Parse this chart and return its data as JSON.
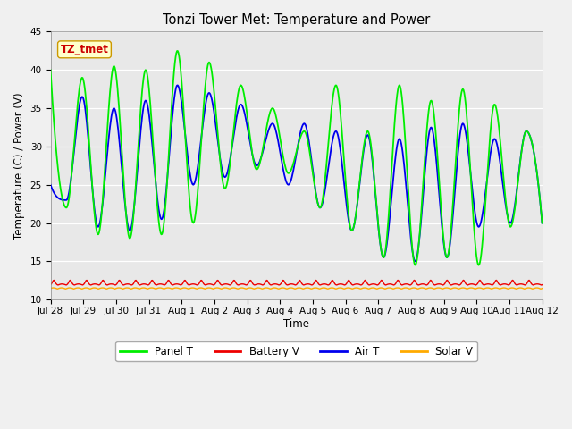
{
  "title": "Tonzi Tower Met: Temperature and Power",
  "xlabel": "Time",
  "ylabel": "Temperature (C) / Power (V)",
  "ylim": [
    10,
    45
  ],
  "yticks": [
    10,
    15,
    20,
    25,
    30,
    35,
    40,
    45
  ],
  "annotation_text": "TZ_tmet",
  "annotation_bg": "#ffffcc",
  "annotation_fg": "#cc0000",
  "plot_bg_color": "#e8e8e8",
  "fig_bg_color": "#f0f0f0",
  "panel_t_color": "#00ee00",
  "battery_v_color": "#ee0000",
  "air_t_color": "#0000ee",
  "solar_v_color": "#ffaa00",
  "x_tick_labels": [
    "Jul 28",
    "Jul 29",
    "Jul 30",
    "Jul 31",
    "Aug 1",
    "Aug 2",
    "Aug 3",
    "Aug 4",
    "Aug 5",
    "Aug 6",
    "Aug 7",
    "Aug 8",
    "Aug 9",
    "Aug 10",
    "Aug 11",
    "Aug 12"
  ],
  "num_points": 720,
  "panel_peaks": [
    40.0,
    22.0,
    39.0,
    18.5,
    40.5,
    18.0,
    40.0,
    18.5,
    42.5,
    20.0,
    41.0,
    24.5,
    38.0,
    27.0,
    35.0,
    26.5,
    32.0,
    22.0,
    38.0,
    19.0,
    32.0,
    15.5,
    38.0,
    14.5,
    36.0,
    15.5,
    37.5,
    14.5,
    35.5,
    19.5,
    32.0,
    20.0
  ],
  "air_peaks": [
    25.0,
    23.0,
    36.5,
    19.5,
    35.0,
    19.0,
    36.0,
    20.5,
    38.0,
    25.0,
    37.0,
    26.0,
    35.5,
    27.5,
    33.0,
    25.0,
    33.0,
    22.0,
    32.0,
    19.0,
    31.5,
    15.5,
    31.0,
    15.0,
    32.5,
    15.5,
    33.0,
    19.5,
    31.0,
    20.0,
    32.0,
    20.0
  ]
}
